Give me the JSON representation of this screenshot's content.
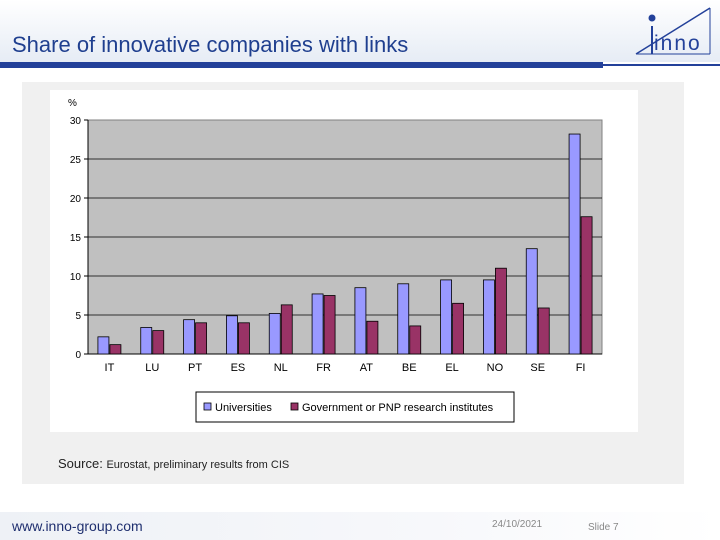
{
  "slide": {
    "title": "Share of innovative companies with links",
    "logo_text": "inno",
    "source_lead": "Source:",
    "source_rest": "Eurostat, preliminary results from CIS",
    "footer_url": "www.inno-group.com",
    "footer_date": "24/10/2021",
    "footer_slide": "Slide 7"
  },
  "chart_data": {
    "type": "bar",
    "title": "",
    "xlabel": "",
    "ylabel": "%",
    "ylim": [
      0,
      30
    ],
    "yticks": [
      0,
      5,
      10,
      15,
      20,
      25,
      30
    ],
    "grid": true,
    "legend_position": "bottom",
    "categories": [
      "IT",
      "LU",
      "PT",
      "ES",
      "NL",
      "FR",
      "AT",
      "BE",
      "EL",
      "NO",
      "SE",
      "FI"
    ],
    "series": [
      {
        "name": "Universities",
        "color": "#9999ff",
        "values": [
          2.2,
          3.4,
          4.4,
          4.9,
          5.2,
          7.7,
          8.5,
          9.0,
          9.5,
          9.5,
          13.5,
          28.2
        ]
      },
      {
        "name": "Government or PNP research institutes",
        "color": "#993366",
        "values": [
          1.2,
          3.0,
          4.0,
          4.0,
          6.3,
          7.5,
          4.2,
          3.6,
          6.5,
          11.0,
          5.9,
          17.6
        ]
      }
    ]
  }
}
